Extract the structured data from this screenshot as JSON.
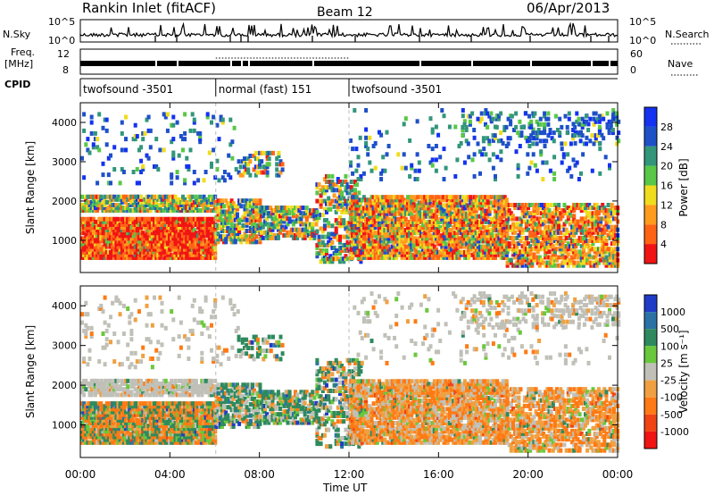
{
  "header": {
    "title": "Rankin Inlet (fitACF)",
    "beam": "Beam 12",
    "date": "06/Apr/2013"
  },
  "labels": {
    "nsky": "N.Sky",
    "nsearch": "N.Search",
    "freq_line1": "Freq.",
    "freq_line2": "[MHz]",
    "nave": "Nave",
    "cpid": "CPID"
  },
  "noise_axis": {
    "left_ticks": [
      "10^5",
      "10^0"
    ],
    "right_ticks": [
      "10^5",
      "10^0"
    ]
  },
  "freq_axis": {
    "left_ticks": [
      "12",
      "8"
    ],
    "right_ticks": [
      "60",
      "0"
    ]
  },
  "cpid_segments": [
    {
      "label": "twofsound -3501",
      "start_h": 0,
      "end_h": 6.05
    },
    {
      "label": "normal (fast) 151",
      "start_h": 6.05,
      "end_h": 12.0
    },
    {
      "label": "twofsound -3501",
      "start_h": 12.0,
      "end_h": 24
    }
  ],
  "time_axis": {
    "label": "Time UT",
    "ticks": [
      {
        "h": 0,
        "label": "00:00"
      },
      {
        "h": 4,
        "label": "04:00"
      },
      {
        "h": 8,
        "label": "08:00"
      },
      {
        "h": 12,
        "label": "12:00"
      },
      {
        "h": 16,
        "label": "16:00"
      },
      {
        "h": 20,
        "label": "20:00"
      },
      {
        "h": 24,
        "label": "00:00"
      }
    ]
  },
  "chart_data": [
    {
      "type": "heatmap",
      "name": "power",
      "ylabel": "Slant Range [km]",
      "xlim": [
        0,
        24
      ],
      "ylim": [
        180,
        4500
      ],
      "yticks": [
        1000,
        2000,
        3000,
        4000
      ],
      "colorbar_label": "Power [dB]",
      "colorbar_ticks": [
        "4",
        "8",
        "12",
        "16",
        "20",
        "24",
        "28"
      ],
      "colorbar_colors": [
        "#1432f0",
        "#1e50c8",
        "#32967a",
        "#58c846",
        "#f0dc1e",
        "#ff9c1e",
        "#ff6414",
        "#f01414"
      ]
    },
    {
      "type": "heatmap",
      "name": "velocity",
      "ylabel": "Slant Range [km]",
      "xlim": [
        0,
        24
      ],
      "ylim": [
        180,
        4500
      ],
      "yticks": [
        1000,
        2000,
        3000,
        4000
      ],
      "colorbar_label": "Velocity [m s⁻¹]",
      "colorbar_ticks": [
        "1000",
        "500",
        "100",
        "25",
        "-25",
        "-100",
        "-500",
        "-1000"
      ],
      "colorbar_colors": [
        "#1e3cc8",
        "#2a72a6",
        "#2e8a5e",
        "#6ac83c",
        "#c0c0b8",
        "#f0a040",
        "#ff7a14",
        "#f04414",
        "#f01414"
      ]
    }
  ]
}
